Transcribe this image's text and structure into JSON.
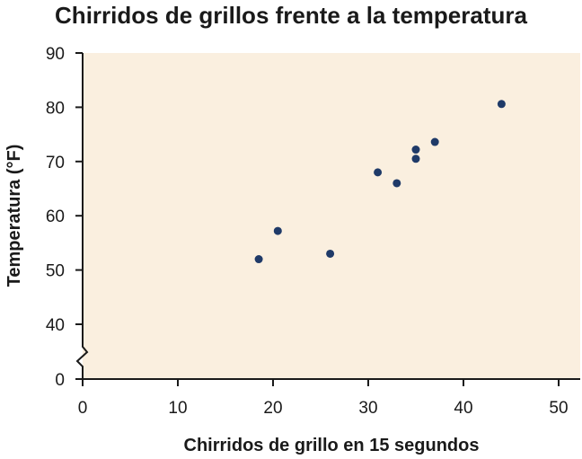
{
  "chart_data": {
    "type": "scatter",
    "title": "Chirridos de grillos frente a la temperatura",
    "xlabel": "Chirridos de grillo en 15 segundos",
    "ylabel": "Temperatura (°F)",
    "xlim": [
      0,
      50
    ],
    "x_ticks": [
      "0",
      "10",
      "20",
      "30",
      "40",
      "50"
    ],
    "y_axis_break": {
      "below": 40,
      "jump_to": 0
    },
    "y_ticks": [
      "0",
      "40",
      "50",
      "60",
      "70",
      "80",
      "90"
    ],
    "grid": false,
    "legend": "none",
    "colors": {
      "plot_background": "#faefdf",
      "point": "#1f3a68",
      "axis": "#1a1a1a"
    },
    "points": [
      {
        "x": 18.5,
        "y": 52
      },
      {
        "x": 20.5,
        "y": 57.2
      },
      {
        "x": 26,
        "y": 53
      },
      {
        "x": 31,
        "y": 68
      },
      {
        "x": 33,
        "y": 66
      },
      {
        "x": 35,
        "y": 72.2
      },
      {
        "x": 35,
        "y": 70.5
      },
      {
        "x": 37,
        "y": 73.6
      },
      {
        "x": 44,
        "y": 80.6
      }
    ]
  }
}
